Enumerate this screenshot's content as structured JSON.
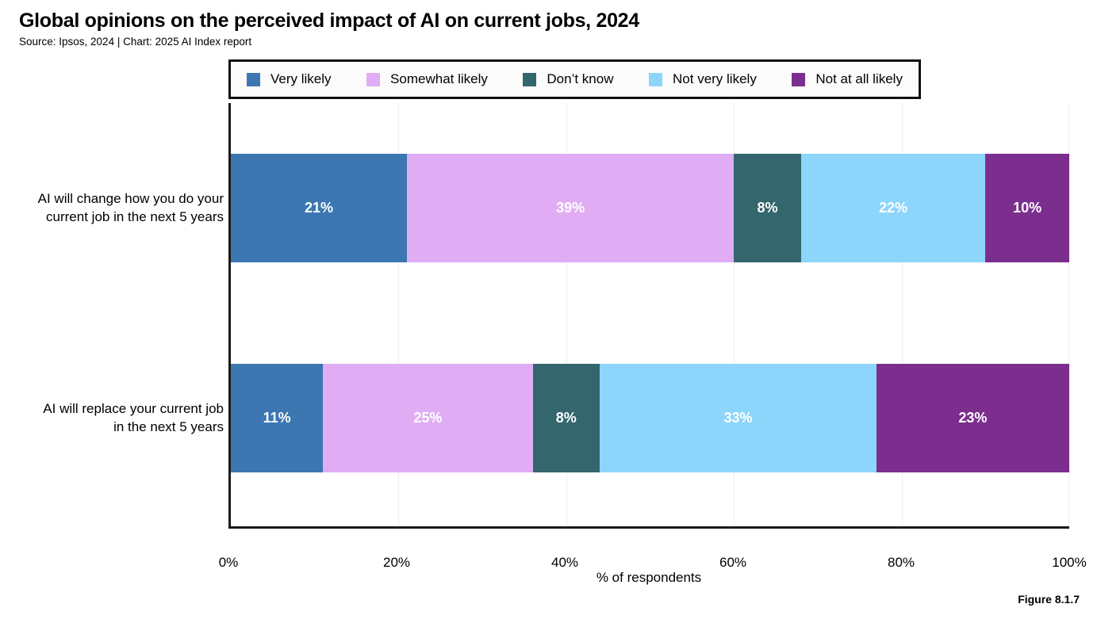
{
  "header": {
    "title": "Global opinions on the perceived impact of AI on current jobs, 2024",
    "subtitle": "Source: Ipsos, 2024 | Chart: 2025 AI Index report"
  },
  "figure_label": "Figure 8.1.7",
  "chart_data": {
    "type": "bar",
    "variant": "horizontal-stacked",
    "title": "Global opinions on the perceived impact of AI on current jobs, 2024",
    "xlabel": "% of respondents",
    "ylabel": "",
    "xlim": [
      0,
      100
    ],
    "x_ticks": [
      "0%",
      "20%",
      "40%",
      "60%",
      "80%",
      "100%"
    ],
    "grid": "vertical gridlines every 20%",
    "legend_position": "top",
    "categories": [
      "AI will change how you do your current job in the next 5 years",
      "AI will replace your current job in the next 5 years"
    ],
    "series": [
      {
        "name": "Very likely",
        "color": "#3C77B2",
        "values": [
          21,
          11
        ]
      },
      {
        "name": "Somewhat likely",
        "color": "#E0ADF4",
        "values": [
          39,
          25
        ]
      },
      {
        "name": "Don’t know",
        "color": "#33666D",
        "values": [
          8,
          8
        ]
      },
      {
        "name": "Not very likely",
        "color": "#8DD5FB",
        "values": [
          22,
          33
        ]
      },
      {
        "name": "Not at all likely",
        "color": "#7C2E8F",
        "values": [
          10,
          23
        ]
      }
    ],
    "rows": [
      {
        "label_lines": [
          "AI will change how you do your",
          "current job in the next 5 years"
        ],
        "segments": [
          {
            "label": "21%",
            "value": 21,
            "color": "#3C77B2"
          },
          {
            "label": "39%",
            "value": 39,
            "color": "#E0ADF4"
          },
          {
            "label": "8%",
            "value": 8,
            "color": "#33666D"
          },
          {
            "label": "22%",
            "value": 22,
            "color": "#8DD5FB"
          },
          {
            "label": "10%",
            "value": 10,
            "color": "#7C2E8F"
          }
        ]
      },
      {
        "label_lines": [
          "AI will replace your current job",
          "in the next 5 years"
        ],
        "segments": [
          {
            "label": "11%",
            "value": 11,
            "color": "#3C77B2"
          },
          {
            "label": "25%",
            "value": 25,
            "color": "#E0ADF4"
          },
          {
            "label": "8%",
            "value": 8,
            "color": "#33666D"
          },
          {
            "label": "33%",
            "value": 33,
            "color": "#8DD5FB"
          },
          {
            "label": "23%",
            "value": 23,
            "color": "#7C2E8F"
          }
        ]
      }
    ]
  }
}
